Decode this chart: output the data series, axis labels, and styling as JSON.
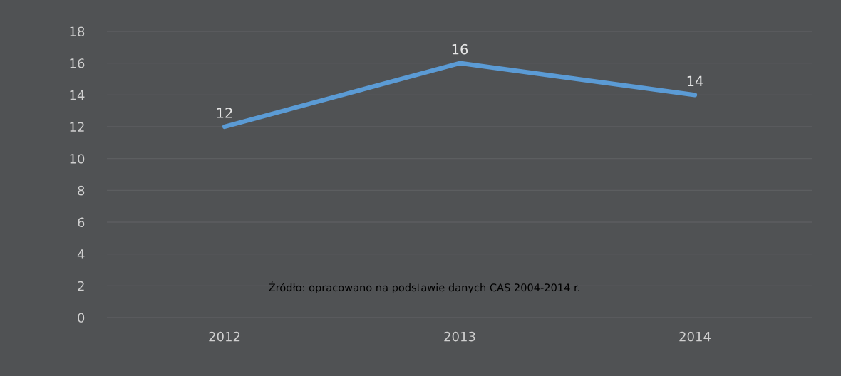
{
  "chart_data": {
    "type": "line",
    "categories": [
      "2012",
      "2013",
      "2014"
    ],
    "series": [
      {
        "color": "#5b9bd5",
        "values": [
          12,
          16,
          14
        ]
      }
    ],
    "ylim": [
      0,
      18
    ],
    "yticks": [
      0,
      2,
      4,
      6,
      8,
      10,
      12,
      14,
      16,
      18
    ],
    "grid": "y",
    "data_labels": true,
    "marker": "none",
    "line_style": "solid",
    "annotations": [
      "Źródło: opracowano na podstawie danych CAS 2004-2014 r."
    ]
  }
}
